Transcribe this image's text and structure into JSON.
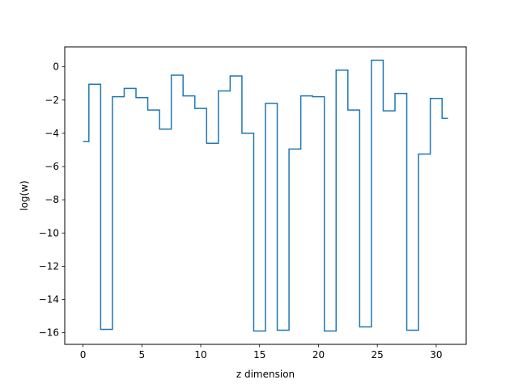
{
  "chart_data": {
    "type": "line",
    "drawstyle": "steps-mid",
    "xlabel": "z dimension",
    "ylabel": "log(w)",
    "xlim": [
      -1.55,
      32.55
    ],
    "ylim": [
      -16.7,
      1.2
    ],
    "xticks": [
      0,
      5,
      10,
      15,
      20,
      25,
      30
    ],
    "yticks": [
      0,
      -2,
      -4,
      -6,
      -8,
      -10,
      -12,
      -14,
      -16
    ],
    "grid": false,
    "series": [
      {
        "color": "#1f77b4",
        "x": [
          0,
          1,
          2,
          3,
          4,
          5,
          6,
          7,
          8,
          9,
          10,
          11,
          12,
          13,
          14,
          15,
          16,
          17,
          18,
          19,
          20,
          21,
          22,
          23,
          24,
          25,
          26,
          27,
          28,
          29,
          30,
          31
        ],
        "y": [
          -4.5,
          -1.05,
          -15.8,
          -1.8,
          -1.3,
          -1.85,
          -2.6,
          -3.75,
          -0.5,
          -1.75,
          -2.5,
          -4.6,
          -1.45,
          -0.55,
          -4.0,
          -15.9,
          -2.2,
          -15.85,
          -4.95,
          -1.75,
          -1.8,
          -15.9,
          -0.2,
          -2.6,
          -15.65,
          0.4,
          -2.65,
          -1.6,
          -15.85,
          -5.25,
          -1.9,
          -3.1
        ]
      }
    ]
  }
}
